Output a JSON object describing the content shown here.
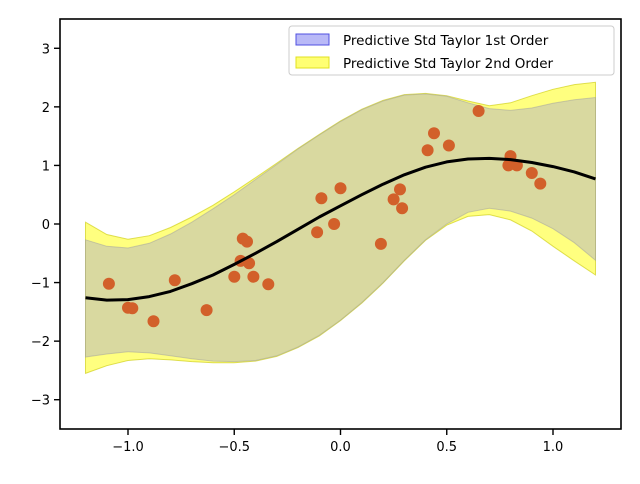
{
  "chart_data": {
    "type": "line",
    "title": "",
    "xlabel": "",
    "ylabel": "",
    "xlim": [
      -1.32,
      1.32
    ],
    "ylim": [
      -3.5,
      3.5
    ],
    "x_ticks": [
      -1.0,
      -0.5,
      0.0,
      0.5,
      1.0
    ],
    "x_tick_labels": [
      "−1.0",
      "−0.5",
      "0.0",
      "0.5",
      "1.0"
    ],
    "y_ticks": [
      -3,
      -2,
      -1,
      0,
      1,
      2,
      3
    ],
    "y_tick_labels": [
      "−3",
      "−2",
      "−1",
      "0",
      "1",
      "2",
      "3"
    ],
    "grid": false,
    "legend_position": "top-right",
    "mean_curve": {
      "x": [
        -1.2,
        -1.1,
        -1.0,
        -0.9,
        -0.8,
        -0.7,
        -0.6,
        -0.5,
        -0.4,
        -0.3,
        -0.2,
        -0.1,
        0.0,
        0.1,
        0.2,
        0.3,
        0.4,
        0.5,
        0.6,
        0.7,
        0.8,
        0.9,
        1.0,
        1.1,
        1.2
      ],
      "y": [
        -1.26,
        -1.3,
        -1.29,
        -1.24,
        -1.15,
        -1.02,
        -0.87,
        -0.69,
        -0.5,
        -0.3,
        -0.09,
        0.12,
        0.31,
        0.5,
        0.68,
        0.84,
        0.97,
        1.06,
        1.11,
        1.12,
        1.1,
        1.05,
        0.98,
        0.89,
        0.77
      ]
    },
    "band_1st_order": {
      "name": "Predictive Std Taylor 1st Order",
      "color": "#8080f0",
      "x": [
        -1.2,
        -1.1,
        -1.0,
        -0.9,
        -0.8,
        -0.7,
        -0.6,
        -0.5,
        -0.4,
        -0.3,
        -0.2,
        -0.1,
        0.0,
        0.1,
        0.2,
        0.3,
        0.4,
        0.5,
        0.6,
        0.7,
        0.8,
        0.9,
        1.0,
        1.1,
        1.2
      ],
      "lower": [
        -2.27,
        -2.22,
        -2.18,
        -2.2,
        -2.25,
        -2.3,
        -2.34,
        -2.35,
        -2.33,
        -2.25,
        -2.1,
        -1.9,
        -1.64,
        -1.34,
        -1.0,
        -0.62,
        -0.27,
        0.0,
        0.2,
        0.27,
        0.22,
        0.1,
        -0.08,
        -0.32,
        -0.62
      ],
      "upper": [
        -0.27,
        -0.38,
        -0.41,
        -0.33,
        -0.17,
        0.03,
        0.26,
        0.5,
        0.76,
        1.02,
        1.28,
        1.52,
        1.75,
        1.95,
        2.1,
        2.2,
        2.22,
        2.18,
        2.07,
        1.97,
        1.94,
        1.98,
        2.06,
        2.12,
        2.16
      ]
    },
    "band_2nd_order": {
      "name": "Predictive Std Taylor 2nd Order",
      "color": "#ffff00",
      "x": [
        -1.2,
        -1.1,
        -1.0,
        -0.9,
        -0.8,
        -0.7,
        -0.6,
        -0.5,
        -0.4,
        -0.3,
        -0.2,
        -0.1,
        0.0,
        0.1,
        0.2,
        0.3,
        0.4,
        0.5,
        0.6,
        0.7,
        0.8,
        0.9,
        1.0,
        1.1,
        1.2
      ],
      "lower": [
        -2.55,
        -2.42,
        -2.33,
        -2.3,
        -2.32,
        -2.35,
        -2.37,
        -2.37,
        -2.34,
        -2.26,
        -2.11,
        -1.91,
        -1.65,
        -1.35,
        -1.01,
        -0.63,
        -0.28,
        -0.02,
        0.13,
        0.16,
        0.07,
        -0.12,
        -0.38,
        -0.63,
        -0.87
      ],
      "upper": [
        0.03,
        -0.18,
        -0.26,
        -0.2,
        -0.06,
        0.12,
        0.32,
        0.55,
        0.79,
        1.04,
        1.29,
        1.53,
        1.76,
        1.96,
        2.11,
        2.21,
        2.23,
        2.19,
        2.1,
        2.02,
        2.07,
        2.19,
        2.3,
        2.38,
        2.42
      ]
    },
    "scatter_points": {
      "color": "#d2602a",
      "x": [
        -1.09,
        -1.0,
        -0.98,
        -0.88,
        -0.78,
        -0.63,
        -0.5,
        -0.47,
        -0.46,
        -0.44,
        -0.43,
        -0.41,
        -0.34,
        -0.11,
        -0.09,
        -0.03,
        0.0,
        0.19,
        0.25,
        0.28,
        0.29,
        0.41,
        0.44,
        0.51,
        0.65,
        0.79,
        0.8,
        0.83,
        0.9,
        0.94
      ],
      "y": [
        -1.02,
        -1.43,
        -1.44,
        -1.66,
        -0.96,
        -1.47,
        -0.9,
        -0.63,
        -0.25,
        -0.3,
        -0.67,
        -0.9,
        -1.03,
        -0.14,
        0.44,
        0.0,
        0.61,
        -0.34,
        0.42,
        0.59,
        0.27,
        1.26,
        1.55,
        1.34,
        1.93,
        1.0,
        1.16,
        1.0,
        0.87,
        0.69
      ]
    }
  }
}
